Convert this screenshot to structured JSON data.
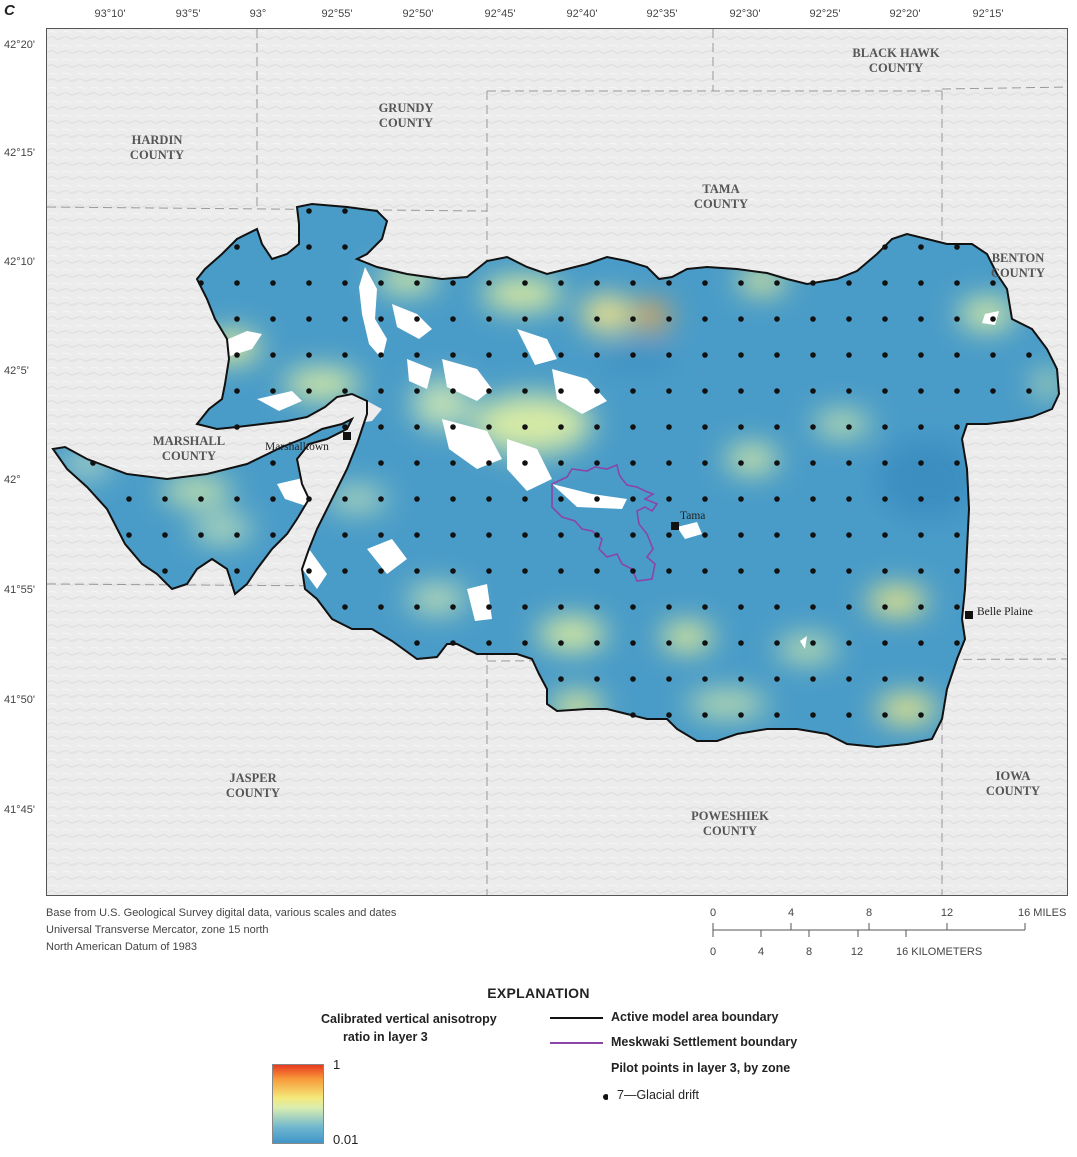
{
  "panel_letter": "C",
  "longitude_ticks": [
    "93°10'",
    "93°5'",
    "93°",
    "92°55'",
    "92°50'",
    "92°45'",
    "92°40'",
    "92°35'",
    "92°30'",
    "92°25'",
    "92°20'",
    "92°15'"
  ],
  "latitude_ticks": [
    "42°20'",
    "42°15'",
    "42°10'",
    "42°5'",
    "42°",
    "41°55'",
    "41°50'",
    "41°45'"
  ],
  "counties": [
    {
      "id": "black-hawk",
      "lines": [
        "BLACK HAWK",
        "COUNTY"
      ]
    },
    {
      "id": "grundy",
      "lines": [
        "GRUNDY",
        "COUNTY"
      ]
    },
    {
      "id": "hardin",
      "lines": [
        "HARDIN",
        "COUNTY"
      ]
    },
    {
      "id": "tama",
      "lines": [
        "TAMA",
        "COUNTY"
      ]
    },
    {
      "id": "benton",
      "lines": [
        "BENTON",
        "COUNTY"
      ]
    },
    {
      "id": "marshall",
      "lines": [
        "MARSHALL",
        "COUNTY"
      ]
    },
    {
      "id": "jasper",
      "lines": [
        "JASPER",
        "COUNTY"
      ]
    },
    {
      "id": "poweshiek",
      "lines": [
        "POWESHIEK",
        "COUNTY"
      ]
    },
    {
      "id": "iowa",
      "lines": [
        "IOWA",
        "COUNTY"
      ]
    }
  ],
  "towns": {
    "marshalltown": "Marshalltown",
    "tama": "Tama",
    "belle_plaine": "Belle Plaine"
  },
  "credits": [
    "Base from U.S. Geological Survey digital data, various scales and dates",
    "Universal Transverse Mercator, zone 15 north",
    "North American Datum of 1983"
  ],
  "scale_bar": {
    "miles": [
      "0",
      "4",
      "8",
      "12",
      "16 MILES"
    ],
    "kilometers": [
      "0",
      "4",
      "8",
      "12",
      "16 KILOMETERS"
    ]
  },
  "explanation": {
    "title": "EXPLANATION",
    "colorbar_title_line1": "Calibrated vertical anisotropy",
    "colorbar_title_line2": "ratio in layer 3",
    "colorbar_max": "1",
    "colorbar_min": "0.01",
    "active_boundary": "Active model area boundary",
    "meskwaki_boundary": "Meskwaki Settlement boundary",
    "pilot_points_title": "Pilot points in layer 3, by zone",
    "pilot_point_zone": "7—Glacial drift"
  },
  "colors": {
    "model_area_blue": "#4a9cc8",
    "anisotropy_high": "#e8391f",
    "anisotropy_mid": "#f4e97a",
    "anisotropy_low": "#3f95c8",
    "meskwaki_purple": "#8b45a8",
    "boundary_black": "#111111",
    "background_relief": "#ececec"
  }
}
